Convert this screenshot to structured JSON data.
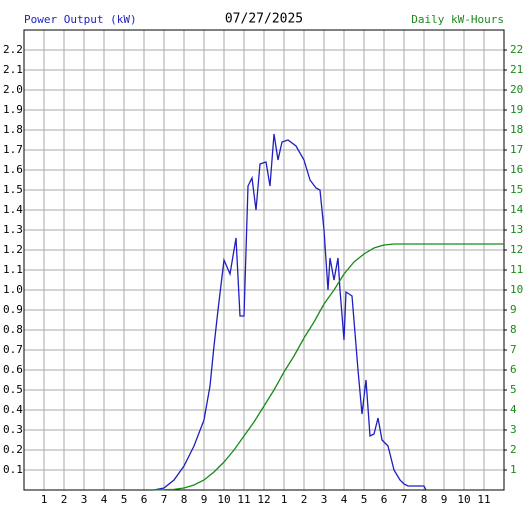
{
  "chart_data": {
    "type": "line",
    "title": "07/27/2025",
    "y_label": "Power Output (kW)",
    "y2_label": "Daily kW-Hours",
    "xlim": [
      0,
      24
    ],
    "xticks": [
      1,
      2,
      3,
      4,
      5,
      6,
      7,
      8,
      9,
      10,
      11,
      12,
      {
        "value": 13,
        "label": "1"
      },
      {
        "value": 14,
        "label": "2"
      },
      {
        "value": 15,
        "label": "3"
      },
      {
        "value": 16,
        "label": "4"
      },
      {
        "value": 17,
        "label": "5"
      },
      {
        "value": 18,
        "label": "6"
      },
      {
        "value": 19,
        "label": "7"
      },
      {
        "value": 20,
        "label": "8"
      },
      {
        "value": 21,
        "label": "9"
      },
      {
        "value": 22,
        "label": "10"
      },
      {
        "value": 23,
        "label": "11"
      }
    ],
    "ylim": [
      0,
      2.3
    ],
    "yticks": [
      0.1,
      0.2,
      0.3,
      0.4,
      0.5,
      0.6,
      0.7,
      0.8,
      0.9,
      {
        "value": 1,
        "label": "1.0"
      },
      1.1,
      1.2,
      1.3,
      1.4,
      1.5,
      1.6,
      1.7,
      1.8,
      1.9,
      {
        "value": 2,
        "label": "2.0"
      },
      2.1,
      2.2
    ],
    "y2lim": [
      0,
      23
    ],
    "y2ticks": [
      1,
      2,
      3,
      4,
      5,
      6,
      7,
      8,
      9,
      10,
      11,
      12,
      13,
      14,
      15,
      16,
      17,
      18,
      19,
      20,
      21,
      22
    ],
    "grid": true,
    "series": [
      {
        "name": "Power Output (kW)",
        "color": "#1f1fbf",
        "axis": "y",
        "x": [
          6.5,
          7.0,
          7.5,
          8.0,
          8.5,
          9.0,
          9.3,
          9.5,
          9.7,
          10.0,
          10.3,
          10.6,
          10.8,
          11.0,
          11.2,
          11.4,
          11.6,
          11.8,
          12.1,
          12.3,
          12.5,
          12.7,
          12.9,
          13.2,
          13.6,
          14.0,
          14.3,
          14.6,
          14.8,
          15.0,
          15.2,
          15.3,
          15.5,
          15.7,
          15.8,
          16.0,
          16.1,
          16.4,
          16.7,
          16.9,
          17.1,
          17.3,
          17.5,
          17.7,
          17.9,
          18.2,
          18.5,
          18.8,
          19.0,
          19.2,
          20.0,
          20.1
        ],
        "values": [
          0,
          0.01,
          0.05,
          0.12,
          0.22,
          0.35,
          0.52,
          0.72,
          0.9,
          1.15,
          1.08,
          1.26,
          0.87,
          0.87,
          1.52,
          1.56,
          1.4,
          1.63,
          1.64,
          1.52,
          1.78,
          1.65,
          1.74,
          1.75,
          1.72,
          1.65,
          1.55,
          1.51,
          1.5,
          1.3,
          1.0,
          1.16,
          1.05,
          1.16,
          1.0,
          0.75,
          0.99,
          0.97,
          0.6,
          0.38,
          0.55,
          0.27,
          0.28,
          0.36,
          0.25,
          0.22,
          0.1,
          0.05,
          0.03,
          0.02,
          0.02,
          0
        ]
      },
      {
        "name": "Daily kW-Hours",
        "color": "#1a8a1a",
        "axis": "y2",
        "x": [
          6.5,
          7.5,
          8.0,
          8.5,
          9.0,
          9.5,
          10.0,
          10.5,
          11.0,
          11.5,
          12.0,
          12.5,
          13.0,
          13.5,
          14.0,
          14.5,
          15.0,
          15.5,
          16.0,
          16.5,
          17.0,
          17.5,
          18.0,
          18.5,
          19.0,
          24.0
        ],
        "values": [
          0,
          0.03,
          0.1,
          0.25,
          0.5,
          0.9,
          1.4,
          2.0,
          2.7,
          3.4,
          4.2,
          5.0,
          5.9,
          6.7,
          7.6,
          8.4,
          9.3,
          10.0,
          10.8,
          11.4,
          11.8,
          12.1,
          12.25,
          12.3,
          12.3,
          12.3
        ]
      }
    ]
  }
}
